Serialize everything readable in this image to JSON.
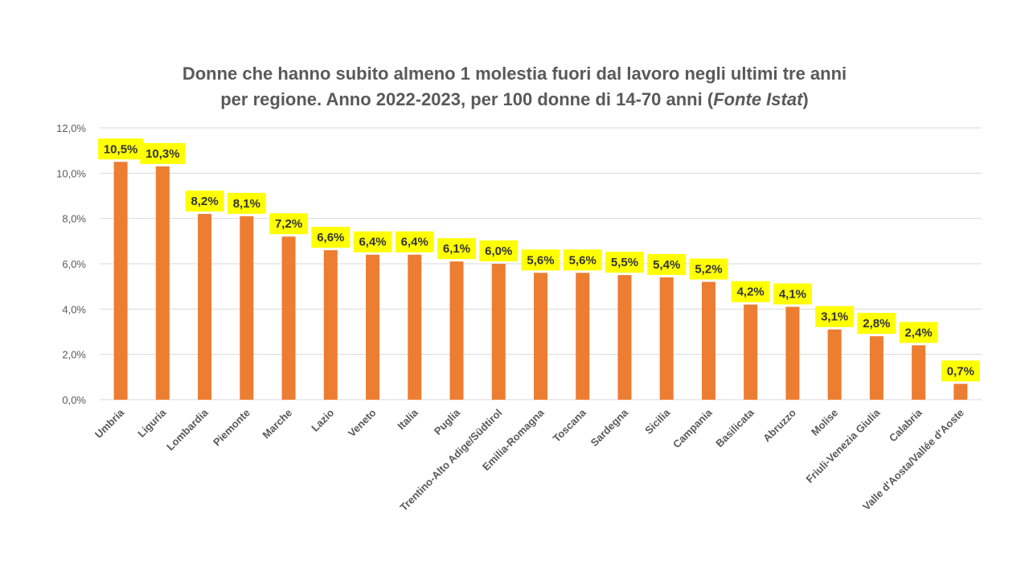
{
  "title_line1": "Donne che hanno subito almeno 1 molestia fuori dal lavoro negli ultimi tre anni",
  "title_line2_main": "per regione. Anno 2022-2023, per 100 donne di 14-70 anni (",
  "title_line2_italic": "Fonte Istat",
  "title_line2_end": ")",
  "colors": {
    "bar": "#ED7D31",
    "label_bg": "#FFFF00",
    "grid": "#D9D9D9",
    "text": "#595959"
  },
  "chart_data": {
    "type": "bar",
    "title": "Donne che hanno subito almeno 1 molestia fuori dal lavoro negli ultimi tre anni per regione. Anno 2022-2023, per 100 donne di 14-70 anni (Fonte Istat)",
    "categories": [
      "Umbria",
      "Liguria",
      "Lombardia",
      "Piemonte",
      "Marche",
      "Lazio",
      "Veneto",
      "Italia",
      "Puglia",
      "Trentino-Alto Adige/Südtirol",
      "Emilia-Romagna",
      "Toscana",
      "Sardegna",
      "Sicilia",
      "Campania",
      "Basilicata",
      "Abruzzo",
      "Molise",
      "Friuli-Venezia Giulia",
      "Calabria",
      "Valle d'Aosta/Vallée d'Aoste"
    ],
    "values": [
      10.5,
      10.3,
      8.2,
      8.1,
      7.2,
      6.6,
      6.4,
      6.4,
      6.1,
      6.0,
      5.6,
      5.6,
      5.5,
      5.4,
      5.2,
      4.2,
      4.1,
      3.1,
      2.8,
      2.4,
      0.7
    ],
    "data_labels": [
      "10,5%",
      "10,3%",
      "8,2%",
      "8,1%",
      "7,2%",
      "6,6%",
      "6,4%",
      "6,4%",
      "6,1%",
      "6,0%",
      "5,6%",
      "5,6%",
      "5,5%",
      "5,4%",
      "5,2%",
      "4,2%",
      "4,1%",
      "3,1%",
      "2,8%",
      "2,4%",
      "0,7%"
    ],
    "ylim": [
      0,
      12
    ],
    "yticks": [
      0,
      2,
      4,
      6,
      8,
      10,
      12
    ],
    "ytick_labels": [
      "0,0%",
      "2,0%",
      "4,0%",
      "6,0%",
      "8,0%",
      "10,0%",
      "12,0%"
    ],
    "grid": true,
    "xlabel": "",
    "ylabel": ""
  }
}
